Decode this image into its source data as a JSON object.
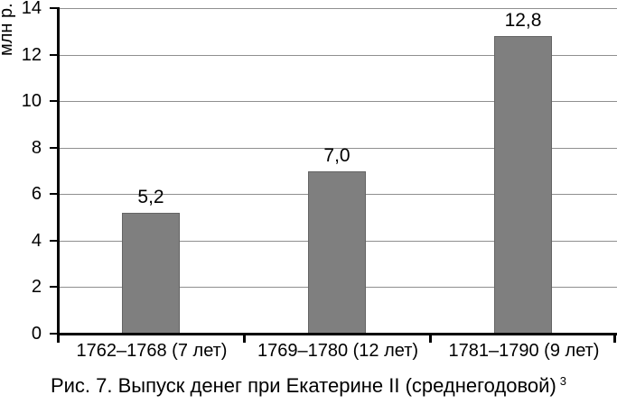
{
  "chart_data": {
    "type": "bar",
    "title": "",
    "xlabel": "",
    "ylabel": "млн р.",
    "categories": [
      "1762–1768 (7 лет)",
      "1769–1780 (12 лет)",
      "1781–1790 (9 лет)"
    ],
    "values": [
      5.2,
      7.0,
      12.8
    ],
    "value_labels": [
      "5,2",
      "7,0",
      "12,8"
    ],
    "ylim": [
      0,
      14
    ],
    "ytick_step": 2,
    "yticks": [
      0,
      2,
      4,
      6,
      8,
      10,
      12,
      14
    ],
    "ytick_labels": [
      "0",
      "2",
      "4",
      "6",
      "8",
      "10",
      "12",
      "14"
    ],
    "grid": "horizontal",
    "legend_position": "none",
    "bar_color": "#7f7f7f",
    "bar_border_color": "#646464",
    "gridline_color": "#8f8f8f",
    "axis_color": "#000000"
  },
  "caption": {
    "text": "Рис. 7. Выпуск денег при Екатерине II (среднегодовой)",
    "footnote_marker": "3"
  }
}
